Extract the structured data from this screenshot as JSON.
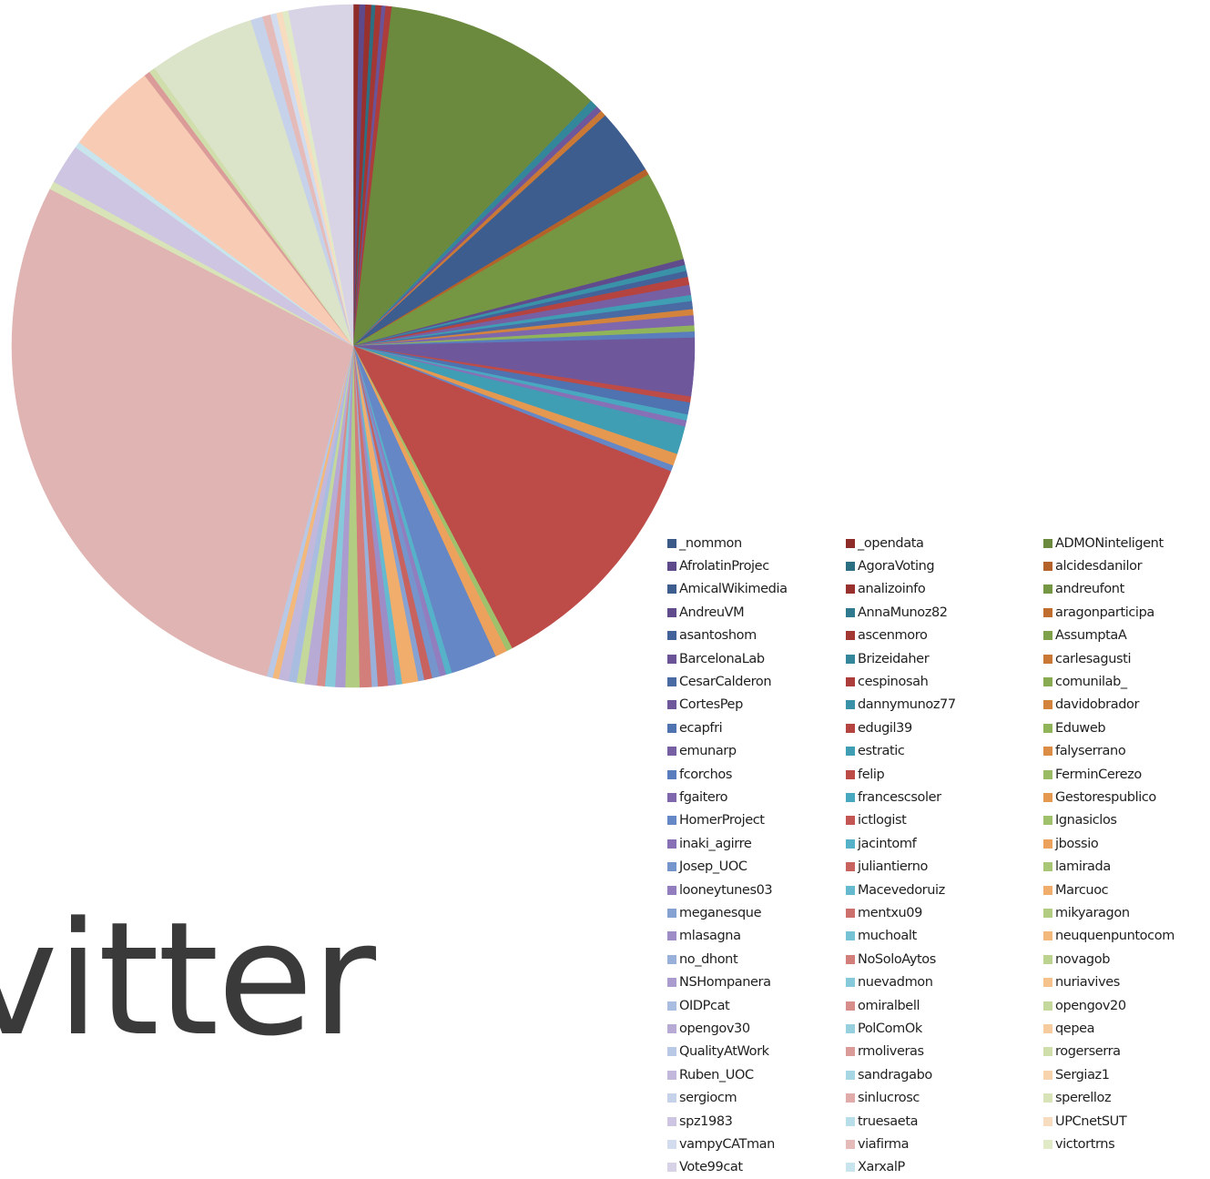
{
  "title_fragment": "vitter",
  "chart_data": {
    "type": "pie",
    "legend_position": "bottom-right",
    "legend": [
      {
        "label": "_nommon",
        "color": "#3c5a88"
      },
      {
        "label": "AfrolatinProjec",
        "color": "#5e4a8a"
      },
      {
        "label": "AmicalWikimedia",
        "color": "#3d5d8e"
      },
      {
        "label": "AndreuVM",
        "color": "#604b8c"
      },
      {
        "label": "asantoshom",
        "color": "#43629a"
      },
      {
        "label": "BarcelonaLab",
        "color": "#6a5396"
      },
      {
        "label": "CesarCalderon",
        "color": "#4a6aa4"
      },
      {
        "label": "CortesPep",
        "color": "#6e579b"
      },
      {
        "label": "ecapfri",
        "color": "#4f72b0"
      },
      {
        "label": "emunarp",
        "color": "#775fa4"
      },
      {
        "label": "fcorchos",
        "color": "#5a7dbd"
      },
      {
        "label": "fgaitero",
        "color": "#7e67ad"
      },
      {
        "label": "HomerProject",
        "color": "#6587c5"
      },
      {
        "label": "inaki_agirre",
        "color": "#8770b6"
      },
      {
        "label": "Josep_UOC",
        "color": "#7595cc"
      },
      {
        "label": "looneytunes03",
        "color": "#927dbe"
      },
      {
        "label": "meganesque",
        "color": "#86a2d3"
      },
      {
        "label": "mlasagna",
        "color": "#9d8cc6"
      },
      {
        "label": "no_dhont",
        "color": "#98b0da"
      },
      {
        "label": "NSHompanera",
        "color": "#aa9cce"
      },
      {
        "label": "OIDPcat",
        "color": "#a9bde0"
      },
      {
        "label": "opengov30",
        "color": "#b7abd5"
      },
      {
        "label": "QualityAtWork",
        "color": "#b8c8e5"
      },
      {
        "label": "Ruben_UOC",
        "color": "#c2b8db"
      },
      {
        "label": "sergiocm",
        "color": "#c6d2ea"
      },
      {
        "label": "spz1983",
        "color": "#cdc5e1"
      },
      {
        "label": "vampyCATman",
        "color": "#d2dcee"
      },
      {
        "label": "Vote99cat",
        "color": "#d8d2e7"
      },
      {
        "label": "_opendata",
        "color": "#8e2c2a"
      },
      {
        "label": "AgoraVoting",
        "color": "#2c6f82"
      },
      {
        "label": "analizoinfo",
        "color": "#98302e"
      },
      {
        "label": "AnnaMunoz82",
        "color": "#2f7a8e"
      },
      {
        "label": "ascenmoro",
        "color": "#a33734"
      },
      {
        "label": "Brizeidaher",
        "color": "#34869b"
      },
      {
        "label": "cespinosah",
        "color": "#ad3d3a"
      },
      {
        "label": "dannymunoz77",
        "color": "#3a92a8"
      },
      {
        "label": "edugil39",
        "color": "#b54340"
      },
      {
        "label": "estratic",
        "color": "#3f9db4"
      },
      {
        "label": "felip",
        "color": "#bd4b48"
      },
      {
        "label": "francescsoler",
        "color": "#48a8c0"
      },
      {
        "label": "ictlogist",
        "color": "#c35552"
      },
      {
        "label": "jacintomf",
        "color": "#55b2c9"
      },
      {
        "label": "juliantierno",
        "color": "#c8625f"
      },
      {
        "label": "Macevedoruiz",
        "color": "#65bad0"
      },
      {
        "label": "mentxu09",
        "color": "#cd706d"
      },
      {
        "label": "muchoalt",
        "color": "#75c2d5"
      },
      {
        "label": "NoSoloAytos",
        "color": "#d27e7b"
      },
      {
        "label": "nuevadmon",
        "color": "#86c9da"
      },
      {
        "label": "omiralbell",
        "color": "#d78d8a"
      },
      {
        "label": "PolComOk",
        "color": "#96d0df"
      },
      {
        "label": "rmoliveras",
        "color": "#db9c99"
      },
      {
        "label": "sandragabo",
        "color": "#a7d7e4"
      },
      {
        "label": "sinlucrosc",
        "color": "#e0aba9"
      },
      {
        "label": "truesaeta",
        "color": "#b8dee9"
      },
      {
        "label": "viafirma",
        "color": "#e5bbb9"
      },
      {
        "label": "XarxalP",
        "color": "#c8e5ee"
      },
      {
        "label": "ADMONinteligent",
        "color": "#6b8a3e"
      },
      {
        "label": "alcidesdanilor",
        "color": "#b5622a"
      },
      {
        "label": "andreufont",
        "color": "#759642"
      },
      {
        "label": "aragonparticipa",
        "color": "#c06d30"
      },
      {
        "label": "AssumptaA",
        "color": "#7ea149"
      },
      {
        "label": "carlesagusti",
        "color": "#ca7836"
      },
      {
        "label": "comunilab_",
        "color": "#88ab51"
      },
      {
        "label": "davidobrador",
        "color": "#d4833c"
      },
      {
        "label": "Eduweb",
        "color": "#90b45a"
      },
      {
        "label": "falyserrano",
        "color": "#dc8d45"
      },
      {
        "label": "FerminCerezo",
        "color": "#98bb63"
      },
      {
        "label": "Gestorespublico",
        "color": "#e59850"
      },
      {
        "label": "Ignasiclos",
        "color": "#a0c16c"
      },
      {
        "label": "jbossio",
        "color": "#eca25d"
      },
      {
        "label": "lamirada",
        "color": "#a9c676"
      },
      {
        "label": "Marcuoc",
        "color": "#f0ad6c"
      },
      {
        "label": "mikyaragon",
        "color": "#b2cc82"
      },
      {
        "label": "neuquenpuntocom",
        "color": "#f3b87c"
      },
      {
        "label": "novagob",
        "color": "#bcd28f"
      },
      {
        "label": "nuriavives",
        "color": "#f5c28c"
      },
      {
        "label": "opengov20",
        "color": "#c5d89c"
      },
      {
        "label": "qepea",
        "color": "#f6cb9d"
      },
      {
        "label": "rogerserra",
        "color": "#cfdeaa"
      },
      {
        "label": "Sergiaz1",
        "color": "#f7d3ae"
      },
      {
        "label": "sperelloz",
        "color": "#d8e4b8"
      },
      {
        "label": "UPCnetSUT",
        "color": "#f8dcbf"
      },
      {
        "label": "victortrns",
        "color": "#e1eac7"
      }
    ],
    "slices": [
      {
        "value": 0.3,
        "color": "#8e2c2a"
      },
      {
        "value": 0.3,
        "color": "#5e4a8a"
      },
      {
        "value": 0.3,
        "color": "#98302e"
      },
      {
        "value": 0.2,
        "color": "#2c6f82"
      },
      {
        "value": 0.3,
        "color": "#a33734"
      },
      {
        "value": 0.2,
        "color": "#6a5396"
      },
      {
        "value": 0.3,
        "color": "#ad3d3a"
      },
      {
        "value": 11.0,
        "color": "#6b8a3e"
      },
      {
        "value": 0.4,
        "color": "#34869b"
      },
      {
        "value": 0.3,
        "color": "#6e579b"
      },
      {
        "value": 0.3,
        "color": "#ca7836"
      },
      {
        "value": 3.3,
        "color": "#3d5d8e"
      },
      {
        "value": 0.3,
        "color": "#b5622a"
      },
      {
        "value": 4.5,
        "color": "#759642"
      },
      {
        "value": 0.3,
        "color": "#604b8c"
      },
      {
        "value": 0.3,
        "color": "#3a92a8"
      },
      {
        "value": 0.3,
        "color": "#43629a"
      },
      {
        "value": 0.4,
        "color": "#b54340"
      },
      {
        "value": 0.5,
        "color": "#775fa4"
      },
      {
        "value": 0.3,
        "color": "#3f9db4"
      },
      {
        "value": 0.4,
        "color": "#4a6aa4"
      },
      {
        "value": 0.3,
        "color": "#d4833c"
      },
      {
        "value": 0.5,
        "color": "#7e67ad"
      },
      {
        "value": 0.3,
        "color": "#90b45a"
      },
      {
        "value": 0.3,
        "color": "#5a7dbd"
      },
      {
        "value": 2.9,
        "color": "#6e579b"
      },
      {
        "value": 0.3,
        "color": "#bd4b48"
      },
      {
        "value": 0.6,
        "color": "#4f72b0"
      },
      {
        "value": 0.3,
        "color": "#48a8c0"
      },
      {
        "value": 0.3,
        "color": "#8770b6"
      },
      {
        "value": 1.4,
        "color": "#3f9db4"
      },
      {
        "value": 0.6,
        "color": "#e59850"
      },
      {
        "value": 0.3,
        "color": "#6587c5"
      },
      {
        "value": 11.9,
        "color": "#bd4b48"
      },
      {
        "value": 0.3,
        "color": "#a0c16c"
      },
      {
        "value": 0.6,
        "color": "#eca25d"
      },
      {
        "value": 2.3,
        "color": "#6587c5"
      },
      {
        "value": 0.3,
        "color": "#55b2c9"
      },
      {
        "value": 0.3,
        "color": "#927dbe"
      },
      {
        "value": 0.4,
        "color": "#7595cc"
      },
      {
        "value": 0.4,
        "color": "#c8625f"
      },
      {
        "value": 0.3,
        "color": "#86a2d3"
      },
      {
        "value": 0.8,
        "color": "#f0ad6c"
      },
      {
        "value": 0.3,
        "color": "#65bad0"
      },
      {
        "value": 0.4,
        "color": "#9d8cc6"
      },
      {
        "value": 0.5,
        "color": "#cd706d"
      },
      {
        "value": 0.3,
        "color": "#98b0da"
      },
      {
        "value": 0.6,
        "color": "#d27e7b"
      },
      {
        "value": 0.7,
        "color": "#b2cc82"
      },
      {
        "value": 0.5,
        "color": "#aa9cce"
      },
      {
        "value": 0.5,
        "color": "#86c9da"
      },
      {
        "value": 0.4,
        "color": "#d78d8a"
      },
      {
        "value": 0.6,
        "color": "#b7abd5"
      },
      {
        "value": 0.4,
        "color": "#c5d89c"
      },
      {
        "value": 0.4,
        "color": "#a9bde0"
      },
      {
        "value": 0.5,
        "color": "#c2b8db"
      },
      {
        "value": 0.3,
        "color": "#f3b87c"
      },
      {
        "value": 0.3,
        "color": "#b8c8e5"
      },
      {
        "value": 30.0,
        "color": "#e0b4b2"
      },
      {
        "value": 0.4,
        "color": "#d8e4b8"
      },
      {
        "value": 2.0,
        "color": "#cdc5e1"
      },
      {
        "value": 0.3,
        "color": "#c8e5ee"
      },
      {
        "value": 4.6,
        "color": "#f7cbb4"
      },
      {
        "value": 0.3,
        "color": "#db9c99"
      },
      {
        "value": 0.3,
        "color": "#cfdeaa"
      },
      {
        "value": 5.3,
        "color": "#dbe3c8"
      },
      {
        "value": 0.6,
        "color": "#c6d2ea"
      },
      {
        "value": 0.4,
        "color": "#e5bbb9"
      },
      {
        "value": 0.3,
        "color": "#d2dcee"
      },
      {
        "value": 0.3,
        "color": "#f8dcbf"
      },
      {
        "value": 0.3,
        "color": "#e1eac7"
      },
      {
        "value": 3.2,
        "color": "#d8d4e6"
      }
    ]
  }
}
